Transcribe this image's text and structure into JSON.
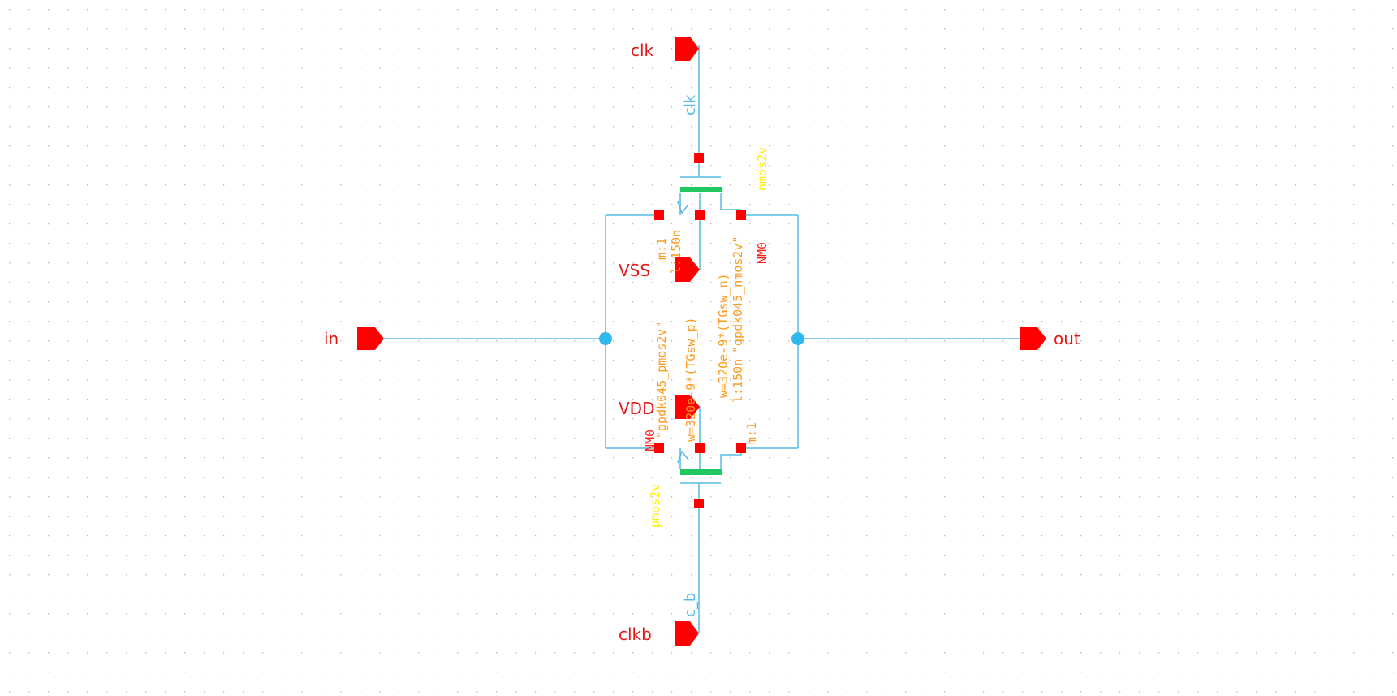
{
  "colors": {
    "background": "#ffffff",
    "grid_dot": "#b4b4b4",
    "wire": "#55bbe6",
    "pin": "#ff0000",
    "pin_label": "#e01818",
    "device_body": "#20c860",
    "device_name": "#ff2020",
    "device_model": "#ffee00",
    "device_param": "#ff9a1e",
    "net_label": "#55bbe6",
    "junction": "#30b8f0"
  },
  "pins": {
    "clk": "clk",
    "clkb": "clkb",
    "in": "in",
    "out": "out",
    "vss": "VSS",
    "vdd": "VDD"
  },
  "nets": {
    "clk_net": "clk",
    "clkb_net": "c_b"
  },
  "nmos": {
    "model": "nmos2v",
    "instance": "NM0",
    "multiplier": "m:1",
    "length": "l:150n",
    "width": "w=320e-9*(TGsw_n)",
    "cell": "\"gpdk045_nmos2v\""
  },
  "pmos": {
    "model": "pmos2v",
    "instance": "NM0",
    "multiplier": "m:1",
    "length": "l:150n",
    "width": "w=320e-9*(TGsw_p)",
    "cell": "\"gpdk045_pmos2v\""
  }
}
